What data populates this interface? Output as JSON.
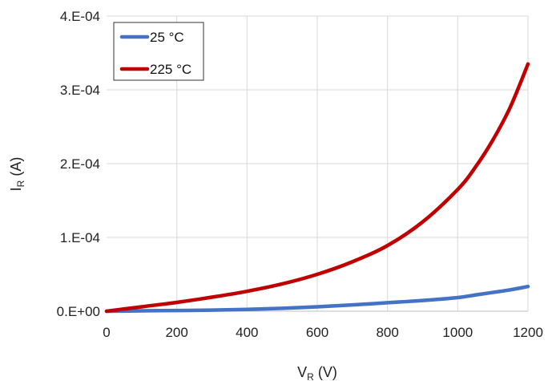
{
  "chart_data": {
    "type": "line",
    "xlabel": {
      "main": "V",
      "sub": "R",
      "unit": " (V)"
    },
    "ylabel": {
      "main": "I",
      "sub": "R",
      "unit": " (A)"
    },
    "xlim": [
      0,
      1200
    ],
    "ylim": [
      0,
      0.0004
    ],
    "x_ticks": [
      0,
      200,
      400,
      600,
      800,
      1000,
      1200
    ],
    "x_tick_labels": [
      "0",
      "200",
      "400",
      "600",
      "800",
      "1000",
      "1200"
    ],
    "y_ticks": [
      0,
      0.0001,
      0.0002,
      0.0003,
      0.0004
    ],
    "y_tick_labels": [
      "0.E+00",
      "1.E-04",
      "2.E-04",
      "3.E-04",
      "4.E-04"
    ],
    "grid": true,
    "legend_position": "top-left",
    "series": [
      {
        "name": "25 °C",
        "color": "#4472c4",
        "x": [
          0,
          100,
          200,
          300,
          400,
          500,
          600,
          700,
          800,
          900,
          1000,
          1050,
          1100,
          1150,
          1200
        ],
        "y": [
          0,
          5e-07,
          1e-06,
          1.5e-06,
          2.5e-06,
          4e-06,
          6e-06,
          8.5e-06,
          1.15e-05,
          1.45e-05,
          1.85e-05,
          2.2e-05,
          2.55e-05,
          2.9e-05,
          3.35e-05
        ]
      },
      {
        "name": "225 °C",
        "color": "#c00000",
        "x": [
          0,
          100,
          200,
          300,
          400,
          500,
          600,
          700,
          800,
          900,
          1000,
          1050,
          1100,
          1150,
          1200
        ],
        "y": [
          0,
          6e-06,
          1.2e-05,
          1.9e-05,
          2.7e-05,
          3.7e-05,
          5e-05,
          6.7e-05,
          8.9e-05,
          0.000121,
          0.000165,
          0.000195,
          0.000232,
          0.000277,
          0.000335
        ]
      }
    ]
  }
}
